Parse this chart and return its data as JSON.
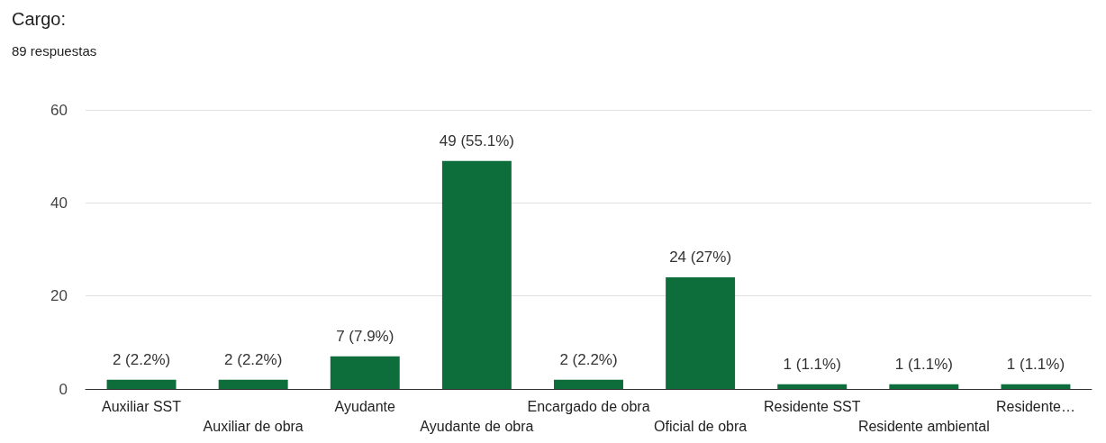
{
  "chart_data": {
    "type": "bar",
    "title": "Cargo:",
    "subtitle": "89 respuestas",
    "categories": [
      "Auxiliar SST",
      "Auxiliar de obra",
      "Ayudante",
      "Ayudante de obra",
      "Encargado de obra",
      "Oficial de obra",
      "Residente SST",
      "Residente ambiental",
      "Residente…"
    ],
    "values": [
      2,
      2,
      7,
      49,
      2,
      24,
      1,
      1,
      1
    ],
    "value_labels": [
      "2 (2.2%)",
      "2 (2.2%)",
      "7 (7.9%)",
      "49 (55.1%)",
      "2 (2.2%)",
      "24 (27%)",
      "1 (1.1%)",
      "1 (1.1%)",
      "1 (1.1%)"
    ],
    "color": "#0e6e3b",
    "ylim": [
      0,
      60
    ],
    "yticks": [
      0,
      20,
      40,
      60
    ],
    "grid": "y"
  }
}
